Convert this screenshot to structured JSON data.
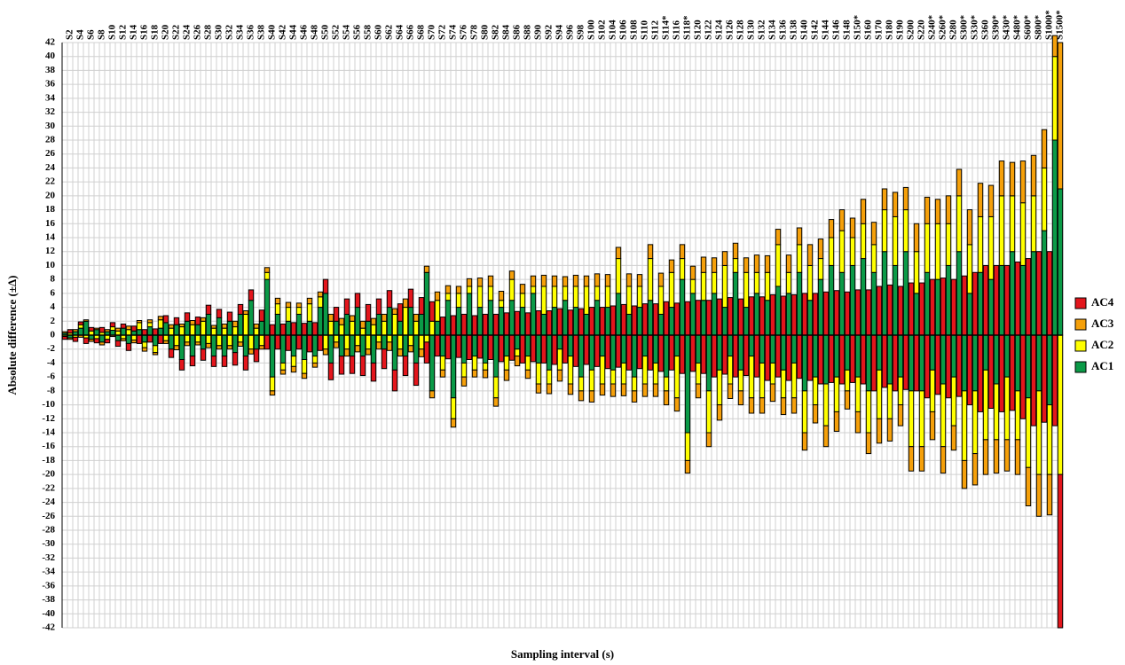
{
  "chart_data": {
    "type": "bar",
    "stacked": true,
    "y_label": "Absolute difference (±Δ)",
    "x_label": "Sampling interval (s)",
    "ylim": [
      -42,
      42
    ],
    "yticks": [
      -42,
      -40,
      -38,
      -36,
      -34,
      -32,
      -30,
      -28,
      -26,
      -24,
      -22,
      -20,
      -18,
      -16,
      -14,
      -12,
      -10,
      -8,
      -6,
      -4,
      -2,
      0,
      2,
      4,
      6,
      8,
      10,
      12,
      14,
      16,
      18,
      20,
      22,
      24,
      26,
      28,
      30,
      32,
      34,
      36,
      38,
      40,
      42
    ],
    "grid": true,
    "legend": "right",
    "categories": [
      null,
      "S2",
      null,
      "S4",
      null,
      "S6",
      null,
      "S8",
      null,
      "S10",
      null,
      "S12",
      null,
      "S14",
      null,
      "S16",
      null,
      "S18",
      null,
      "S20",
      null,
      "S22",
      null,
      "S24",
      null,
      "S26",
      null,
      "S28",
      null,
      "S30",
      null,
      "S32",
      null,
      "S34",
      null,
      "S36",
      null,
      "S38",
      null,
      "S40",
      null,
      "S42",
      null,
      "S44",
      null,
      "S46",
      null,
      "S48",
      null,
      "S50",
      null,
      "S52",
      null,
      "S54",
      null,
      "S56",
      null,
      "S58",
      null,
      "S60",
      null,
      "S62",
      null,
      "S64",
      null,
      "S66",
      null,
      "S68",
      null,
      "S70",
      null,
      "S72",
      null,
      "S74",
      null,
      "S76",
      null,
      "S78",
      null,
      "S80",
      null,
      "S82",
      null,
      "S84",
      null,
      "S86",
      null,
      "S88",
      null,
      "S90",
      null,
      "S92",
      null,
      "S94",
      null,
      "S96",
      null,
      "S98",
      null,
      "S100",
      null,
      "S102",
      null,
      "S104",
      null,
      "S106",
      null,
      "S108",
      null,
      "S110",
      null,
      "S112",
      null,
      "S114*",
      null,
      "S116",
      null,
      "S118*",
      null,
      "S120",
      null,
      "S122",
      null,
      "S124",
      null,
      "S126",
      null,
      "S128",
      null,
      "S130",
      null,
      "S132",
      null,
      "S134",
      null,
      "S136",
      null,
      "S138",
      null,
      "S140",
      null,
      "S142",
      null,
      "S144",
      null,
      "S146",
      null,
      "S148",
      null,
      "S150*",
      null,
      "S160",
      null,
      "S170",
      null,
      "S180",
      null,
      "S190",
      null,
      "S200",
      null,
      "S220",
      null,
      "S240*",
      null,
      "S260*",
      null,
      "S280",
      null,
      "S300*",
      null,
      "S330*",
      null,
      "S360",
      null,
      "S390*",
      null,
      "S430*",
      null,
      "S480*",
      null,
      "S600*",
      null,
      "S800*",
      null,
      "S1000*",
      null,
      "S1500*"
    ],
    "series": [
      {
        "name": "AC1",
        "color": "#0b9a47",
        "values": [
          0.3,
          -0.4,
          0.5,
          1,
          2,
          -0.6,
          0.8,
          -1,
          0.5,
          0.7,
          -0.8,
          1,
          -1.2,
          0.6,
          0.8,
          -1,
          1.2,
          -1.5,
          1,
          1.8,
          -2,
          1.5,
          -3.5,
          2,
          -3,
          1.5,
          -2,
          3,
          -3,
          2.5,
          -3,
          2,
          -2.5,
          3,
          -3,
          5,
          -2,
          2,
          8,
          -6,
          3,
          -4,
          2,
          -3,
          3,
          -3.5,
          2,
          -3,
          4,
          6,
          -4,
          2,
          -3,
          3,
          -3,
          4,
          -3,
          2,
          -4,
          3,
          -2,
          4,
          -5,
          2,
          -3,
          4,
          -4,
          3,
          9,
          -8,
          2,
          -3,
          5,
          -9,
          4,
          -4,
          6,
          -3,
          4,
          -4,
          5,
          -6,
          4,
          -3,
          5,
          -2,
          4,
          -3,
          6,
          -4,
          3,
          -5,
          4,
          -2,
          5,
          -3,
          4,
          -6,
          3,
          -5,
          5,
          -3,
          4,
          -5,
          6,
          -4,
          3,
          -6,
          4,
          -3,
          5,
          -4,
          3,
          -6,
          4,
          -3,
          8,
          -14,
          6,
          -4,
          5,
          -8,
          6,
          -5,
          4,
          -3,
          9,
          -5,
          4,
          -3,
          6,
          -4,
          5,
          -4,
          7,
          -5,
          6,
          -4,
          9,
          -8,
          5,
          -6,
          8,
          -7,
          10,
          -6,
          9,
          -5,
          10,
          -6,
          11,
          -8,
          9,
          -5,
          12,
          -7,
          10,
          -6,
          12,
          -8,
          6,
          -8,
          9,
          -5,
          8,
          -7,
          10,
          -6,
          12,
          -8,
          6,
          -8,
          9,
          -5,
          8,
          -7,
          10,
          -6,
          12,
          -8,
          10,
          -9,
          12,
          -8,
          15,
          -10,
          28,
          21
        ]
      },
      {
        "name": "AC2",
        "color": "#ffff00",
        "values": [
          -0.2,
          0.3,
          -0.3,
          0.5,
          -0.4,
          0.6,
          -0.5,
          0.4,
          -0.6,
          0.5,
          0.6,
          -0.5,
          0.8,
          -0.7,
          1,
          -0.8,
          0.6,
          -1,
          1.2,
          -0.8,
          1,
          -1.5,
          1.2,
          -1,
          1.5,
          -1,
          2,
          -1.2,
          1,
          -1.5,
          1,
          -1.5,
          1.2,
          -1,
          3,
          -2,
          1,
          -1.5,
          1,
          -2,
          1.5,
          -1,
          2,
          -1.5,
          1,
          -2,
          2.5,
          -1,
          1.5,
          -2,
          2,
          -1,
          1.5,
          -2,
          2,
          -1.5,
          1,
          -2,
          1.5,
          -1,
          2,
          -1,
          3,
          -2,
          4,
          -1.5,
          2,
          -2,
          -1,
          2,
          3,
          -2,
          1,
          -3,
          2,
          -2,
          1,
          -2,
          3,
          -1,
          2,
          -3,
          1,
          -2,
          3,
          -1,
          2,
          -2,
          1,
          -3,
          4,
          -2,
          3,
          -3,
          2,
          -4,
          3,
          -2,
          4,
          -3,
          2,
          -4,
          3,
          -2,
          5,
          -3,
          4,
          -2,
          3,
          -4,
          6,
          -3,
          4,
          -2,
          5,
          -6,
          3,
          -4,
          2,
          -3,
          4,
          -6,
          3,
          -5,
          6,
          -4,
          2,
          -3,
          5,
          -6,
          3,
          -5,
          4,
          -3,
          6,
          -4,
          3,
          -5,
          4,
          -6,
          5,
          -4,
          3,
          -6,
          4,
          -5,
          6,
          -3,
          4,
          -5,
          5,
          -6,
          4,
          -7,
          6,
          -5,
          7,
          -4,
          6,
          -8,
          6,
          -8,
          7,
          -6,
          8,
          -9,
          6,
          -7,
          8,
          -10,
          7,
          -9,
          8,
          -10,
          9,
          -8,
          10,
          -9,
          8,
          -7,
          9,
          -10,
          8,
          -12,
          9,
          -10,
          12,
          -20
        ]
      },
      {
        "name": "AC3",
        "color": "#f5a00a",
        "values": [
          0.2,
          -0.2,
          0.3,
          -0.3,
          0.2,
          -0.3,
          0.2,
          -0.4,
          0.3,
          -0.2,
          0.4,
          -0.3,
          0.5,
          -0.4,
          0.3,
          -0.5,
          0.4,
          -0.3,
          0.5,
          -0.4,
          0.5,
          -0.6,
          0.4,
          -0.5,
          0.6,
          -0.4,
          0.5,
          -0.6,
          0.4,
          -0.5,
          0.6,
          -0.5,
          0.8,
          -0.6,
          0.5,
          -0.7,
          0.6,
          -0.5,
          0.7,
          -0.6,
          0.8,
          -0.6,
          0.7,
          -0.8,
          0.6,
          -0.7,
          0.8,
          -0.6,
          0.7,
          -0.8,
          1,
          -0.8,
          0.9,
          -1,
          0.8,
          -0.9,
          1,
          -0.8,
          0.9,
          -1,
          1,
          -1.2,
          0.8,
          -1,
          1.2,
          -0.9,
          1,
          -1.1,
          0.9,
          -1,
          1.2,
          -1,
          1.1,
          -1.2,
          1,
          -1.3,
          1.1,
          -1,
          1.2,
          -1.1,
          1.5,
          -1.2,
          1.3,
          -1.5,
          1.2,
          -1.4,
          1.3,
          -1.2,
          1.5,
          -1.3,
          1.6,
          -1.4,
          1.5,
          -1.6,
          1.4,
          -1.5,
          1.6,
          -1.4,
          1.5,
          -1.6,
          1.8,
          -1.6,
          1.7,
          -1.8,
          1.6,
          -1.7,
          1.8,
          -1.6,
          1.7,
          -1.8,
          2,
          -1.8,
          1.9,
          -2,
          1.8,
          -1.9,
          2,
          -1.8,
          1.9,
          -2,
          2.2,
          -2,
          2.1,
          -2.2,
          2,
          -2.1,
          2.2,
          -2,
          2.1,
          -2.2,
          2.5,
          -2.2,
          2.4,
          -2.5,
          2.2,
          -2.4,
          2.5,
          -2.2,
          2.4,
          -2.5,
          3,
          -2.6,
          2.8,
          -3,
          2.6,
          -2.8,
          3,
          -2.6,
          2.8,
          -3,
          3.5,
          -3,
          3.2,
          -3.5,
          3,
          -3.2,
          3.5,
          -3,
          3.2,
          -3.5,
          4,
          -3.5,
          3.8,
          -4,
          3.5,
          -3.8,
          4,
          -3.5,
          3.8,
          -4,
          5,
          -4.5,
          4.8,
          -5,
          4.5,
          -4.8,
          5,
          -4.5,
          4.8,
          -5,
          6,
          -5.5,
          5.8,
          -6,
          5.5,
          -5.8,
          3,
          21
        ]
      },
      {
        "name": "AC4",
        "color": "#e3161c",
        "values": [
          -0.4,
          0.5,
          -0.6,
          0.4,
          -0.8,
          0.5,
          -0.6,
          0.7,
          -0.5,
          0.6,
          -0.8,
          0.6,
          -1,
          0.7,
          -1.2,
          0.8,
          -1,
          0.9,
          -1.2,
          1,
          -1.2,
          1,
          -1.5,
          1.2,
          -1.4,
          1.1,
          -1.6,
          1.3,
          -1.5,
          1.2,
          -1.5,
          1.3,
          -1.8,
          1.4,
          -2,
          1.5,
          -1.8,
          1.6,
          -2,
          1.5,
          -2,
          1.6,
          -2.2,
          1.8,
          -2,
          1.7,
          -2.4,
          1.8,
          -2.2,
          2,
          -2.4,
          2,
          -2.6,
          2.2,
          -2.5,
          2,
          -2.8,
          2.4,
          -2.6,
          2.2,
          -2.8,
          2.4,
          -3,
          2.5,
          -2.8,
          2.6,
          -3.2,
          2.4,
          -3,
          2.8,
          -3,
          2.6,
          -3.4,
          2.8,
          -3.2,
          3,
          -3.5,
          2.8,
          -3.3,
          3,
          -3.5,
          3,
          -3.8,
          3.2,
          -3.6,
          3.4,
          -4,
          3.2,
          -3.8,
          3.5,
          -4,
          3.5,
          -4.2,
          3.8,
          -4,
          3.6,
          -4.5,
          3.8,
          -4.2,
          4,
          -4.5,
          4,
          -4.8,
          4.2,
          -4.6,
          4.4,
          -5,
          4.2,
          -4.8,
          4.5,
          -5,
          4.5,
          -5.2,
          4.8,
          -5,
          4.6,
          -5.5,
          4.8,
          -5.2,
          5,
          -5.5,
          5,
          -6,
          5.2,
          -5.6,
          5.4,
          -6,
          5.2,
          -5.8,
          5.5,
          -6,
          5.5,
          -6.5,
          5.8,
          -6,
          5.6,
          -6.5,
          5.8,
          -6.2,
          6,
          -6.5,
          6,
          -7,
          6.2,
          -6.8,
          6.4,
          -7,
          6.2,
          -6.8,
          6.5,
          -7,
          6.5,
          -8,
          7,
          -7.5,
          7.2,
          -8,
          7,
          -7.8,
          7.5,
          -8,
          7.5,
          -9,
          8,
          -8.5,
          8.2,
          -9,
          8,
          -8.8,
          8.5,
          -10,
          9,
          -11,
          10,
          -10.5,
          10,
          -11,
          10,
          -10.8,
          10.5,
          -12,
          11,
          -13,
          12,
          -12.5,
          12,
          -13,
          -22
        ]
      }
    ]
  }
}
